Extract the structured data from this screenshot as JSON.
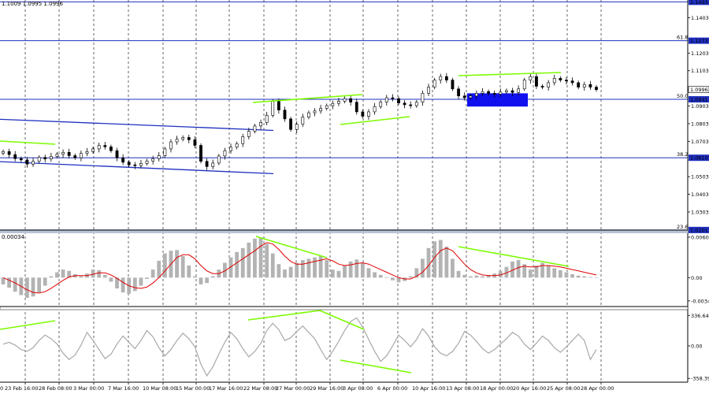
{
  "chart_data": {
    "type": "candlestick",
    "symbol_ohlc_text": "1.1009 1.0995 1.0996",
    "x_labels": [
      "23 Feb 16:00",
      "28 Feb 08:00",
      "3 Mar 00:00",
      "7 Mar 16:00",
      "10 Mar 08:00",
      "15 Mar 00:00",
      "17 Mar 16:00",
      "22 Mar 08:00",
      "27 Mar 00:00",
      "29 Mar 16:00",
      "3 Apr 08:00",
      "6 Apr 00:00",
      "10 Apr 16:00",
      "13 Apr 08:00",
      "18 Apr 00:00",
      "20 Apr 16:00",
      "25 Apr 08:00",
      "28 Apr 00:00"
    ],
    "x_first_label": "0",
    "price_ticks": [
      "1.1403",
      "1.1203",
      "1.1103",
      "1.0903",
      "1.0803",
      "1.0703",
      "1.0503",
      "1.0403",
      "1.0303"
    ],
    "price_range": [
      1.0195,
      1.1505
    ],
    "current_price": "1.0996",
    "fib_levels": [
      {
        "pct": "",
        "price": "1.1493"
      },
      {
        "pct": "61.8",
        "price": "1.1273"
      },
      {
        "pct": "50.0",
        "price": "1.0941"
      },
      {
        "pct": "38.2",
        "price": "1.0610"
      },
      {
        "pct": "23.6",
        "price": "1.0201"
      }
    ],
    "close_series": [
      1.0645,
      1.0628,
      1.0605,
      1.0598,
      1.0574,
      1.059,
      1.0612,
      1.0603,
      1.0618,
      1.063,
      1.0641,
      1.0622,
      1.061,
      1.0635,
      1.0645,
      1.066,
      1.068,
      1.0672,
      1.065,
      1.061,
      1.0585,
      1.057,
      1.0565,
      1.0578,
      1.0592,
      1.0605,
      1.0622,
      1.066,
      1.07,
      1.0715,
      1.0725,
      1.0712,
      1.068,
      1.059,
      1.056,
      1.058,
      1.062,
      1.065,
      1.067,
      1.069,
      1.073,
      1.076,
      1.079,
      1.081,
      1.085,
      1.093,
      1.088,
      1.083,
      1.077,
      1.08,
      1.084,
      1.0865,
      1.0875,
      1.089,
      1.0905,
      1.0918,
      1.093,
      1.0945,
      1.0925,
      1.087,
      1.0845,
      1.087,
      1.09,
      1.0925,
      1.095,
      1.0945,
      1.092,
      1.091,
      1.0905,
      1.0925,
      1.0975,
      1.101,
      1.105,
      1.107,
      1.105,
      1.1,
      1.096,
      1.095,
      1.096,
      1.0975,
      1.0985,
      1.0975,
      1.097,
      1.0982,
      1.099,
      1.098,
      1.1,
      1.105,
      1.107,
      1.1015,
      1.101,
      1.1035,
      1.106,
      1.105,
      1.1045,
      1.1035,
      1.101,
      1.1025,
      1.101,
      1.0996
    ],
    "blue_box": {
      "price_low": 1.09,
      "price_high": 1.0975
    },
    "channel_lines_price": [
      {
        "from": 1.0828,
        "to": 1.0765
      },
      {
        "from": 1.0588,
        "to": 1.052
      }
    ],
    "macd_axis": {
      "ticks": [
        "0.00602",
        "0.00",
        "-0.00346"
      ],
      "label": "0.00034",
      "range": [
        -0.0043,
        0.0066
      ]
    },
    "macd_histogram": [
      -0.001,
      -0.0015,
      -0.0021,
      -0.0026,
      -0.003,
      -0.0028,
      -0.0022,
      -0.0012,
      0.0002,
      0.0008,
      0.0012,
      0.001,
      0.0005,
      0.0002,
      0.0006,
      0.0012,
      0.0011,
      0.0004,
      -0.0006,
      -0.0016,
      -0.0022,
      -0.0024,
      -0.002,
      -0.0012,
      -0.0002,
      0.0012,
      0.0025,
      0.0036,
      0.004,
      0.0041,
      0.0032,
      0.0018,
      0.0002,
      -0.001,
      -0.0008,
      0.0002,
      0.0012,
      0.0022,
      0.003,
      0.0038,
      0.0044,
      0.0052,
      0.0058,
      0.006,
      0.005,
      0.0036,
      0.002,
      0.0012,
      0.0016,
      0.0022,
      0.0026,
      0.0028,
      0.003,
      0.0032,
      0.0026,
      0.0012,
      0.001,
      0.0018,
      0.0024,
      0.0027,
      0.0022,
      0.0014,
      0.0008,
      0.0004,
      0.0,
      -0.0004,
      -0.0007,
      -0.0005,
      0.0002,
      0.0014,
      0.0028,
      0.0044,
      0.0054,
      0.0056,
      0.0046,
      0.0028,
      0.001,
      0.0004,
      0.0002,
      0.0003,
      0.0002,
      0.0004,
      0.0006,
      0.001,
      0.0016,
      0.0024,
      0.0026,
      0.002,
      0.0012,
      0.0018,
      0.0022,
      0.0018,
      0.0014,
      0.0011,
      0.0008,
      0.0005,
      0.0003,
      0.0002,
      0.0001,
      0.0
    ],
    "macd_signal": [
      0.0,
      -0.0004,
      -0.0008,
      -0.0013,
      -0.0018,
      -0.0022,
      -0.0023,
      -0.0021,
      -0.0016,
      -0.001,
      -0.0004,
      0.0001,
      0.0003,
      0.0003,
      0.0003,
      0.0005,
      0.0007,
      0.0007,
      0.0004,
      -0.0001,
      -0.0007,
      -0.0012,
      -0.0015,
      -0.0016,
      -0.0014,
      -0.0008,
      0.0,
      0.001,
      0.002,
      0.003,
      0.0034,
      0.0034,
      0.0028,
      0.0018,
      0.001,
      0.0006,
      0.0006,
      0.001,
      0.0016,
      0.0022,
      0.0028,
      0.0034,
      0.004,
      0.0047,
      0.0052,
      0.005,
      0.0042,
      0.0032,
      0.0024,
      0.002,
      0.002,
      0.0022,
      0.0024,
      0.0026,
      0.0028,
      0.0025,
      0.002,
      0.0018,
      0.0019,
      0.0021,
      0.0022,
      0.002,
      0.0016,
      0.0012,
      0.0008,
      0.0004,
      0.0,
      -0.0002,
      -0.0002,
      0.0002,
      0.0008,
      0.0018,
      0.003,
      0.004,
      0.0044,
      0.004,
      0.003,
      0.002,
      0.0012,
      0.0007,
      0.0004,
      0.0003,
      0.0003,
      0.0004,
      0.0007,
      0.0011,
      0.0015,
      0.0017,
      0.0016,
      0.0016,
      0.0018,
      0.0018,
      0.0017,
      0.0016,
      0.0014,
      0.0012,
      0.001,
      0.0008,
      0.0006,
      0.0004
    ],
    "cci_axis": {
      "ticks": [
        "336.644",
        "0.00",
        "-358.398"
      ],
      "range": [
        -400,
        400
      ]
    },
    "cci_series": [
      20,
      40,
      10,
      -40,
      -60,
      -20,
      60,
      120,
      80,
      20,
      -80,
      -150,
      -100,
      10,
      150,
      60,
      -40,
      -140,
      -90,
      20,
      110,
      40,
      -30,
      60,
      170,
      100,
      -20,
      -110,
      -40,
      60,
      140,
      80,
      -10,
      -200,
      -330,
      -230,
      -90,
      40,
      150,
      80,
      -30,
      -120,
      -60,
      30,
      170,
      250,
      180,
      60,
      90,
      160,
      220,
      150,
      80,
      -40,
      -150,
      -60,
      50,
      170,
      270,
      310,
      210,
      70,
      -60,
      -170,
      -110,
      0,
      120,
      60,
      -10,
      70,
      190,
      110,
      -10,
      -80,
      -110,
      -60,
      30,
      160,
      120,
      50,
      -30,
      -80,
      -40,
      20,
      80,
      150,
      110,
      20,
      -40,
      30,
      110,
      60,
      -20,
      -70,
      -10,
      60,
      130,
      60,
      -150,
      -40
    ]
  }
}
